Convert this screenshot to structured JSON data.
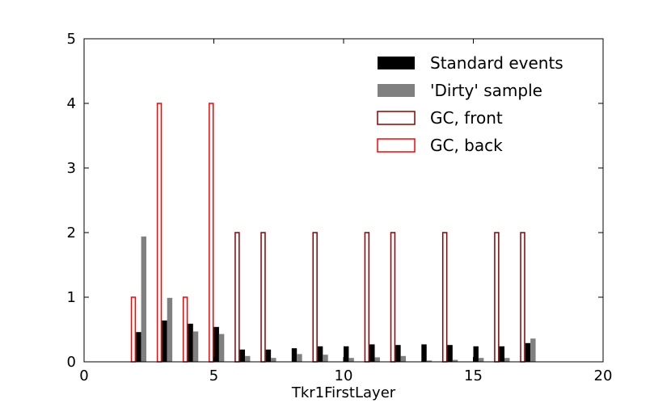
{
  "chart_data": {
    "type": "bar",
    "title": "",
    "xlabel": "Tkr1FirstLayer",
    "ylabel": "",
    "xlim": [
      0,
      20
    ],
    "ylim": [
      0,
      5
    ],
    "xticks": [
      0,
      5,
      10,
      15,
      20
    ],
    "yticks": [
      0,
      1,
      2,
      3,
      4,
      5
    ],
    "grid": false,
    "legend_position": "top-right",
    "series": [
      {
        "name": "Standard events",
        "style": "filled",
        "color": "#000000",
        "x": [
          2,
          3,
          4,
          5,
          6,
          7,
          8,
          9,
          10,
          11,
          12,
          13,
          14,
          15,
          16,
          17
        ],
        "values": [
          0.46,
          0.64,
          0.59,
          0.54,
          0.19,
          0.19,
          0.21,
          0.24,
          0.24,
          0.27,
          0.26,
          0.27,
          0.26,
          0.24,
          0.24,
          0.29
        ]
      },
      {
        "name": "'Dirty' sample",
        "style": "filled",
        "color": "#808080",
        "x": [
          2,
          3,
          4,
          5,
          6,
          7,
          8,
          9,
          10,
          11,
          12,
          13,
          14,
          15,
          16,
          17
        ],
        "values": [
          1.94,
          0.99,
          0.47,
          0.43,
          0.09,
          0.06,
          0.12,
          0.11,
          0.06,
          0.07,
          0.09,
          0.02,
          0.03,
          0.06,
          0.06,
          0.36
        ]
      },
      {
        "name": "GC, front",
        "style": "outline",
        "color": "#8b0000",
        "x": [
          6,
          7,
          9,
          11,
          12,
          14,
          16,
          17
        ],
        "values": [
          2,
          2,
          2,
          2,
          2,
          2,
          2,
          2
        ]
      },
      {
        "name": "GC, back",
        "style": "outline",
        "color": "#ff0000",
        "x": [
          2,
          3,
          4,
          5
        ],
        "values": [
          1,
          4,
          1,
          4
        ]
      }
    ]
  }
}
